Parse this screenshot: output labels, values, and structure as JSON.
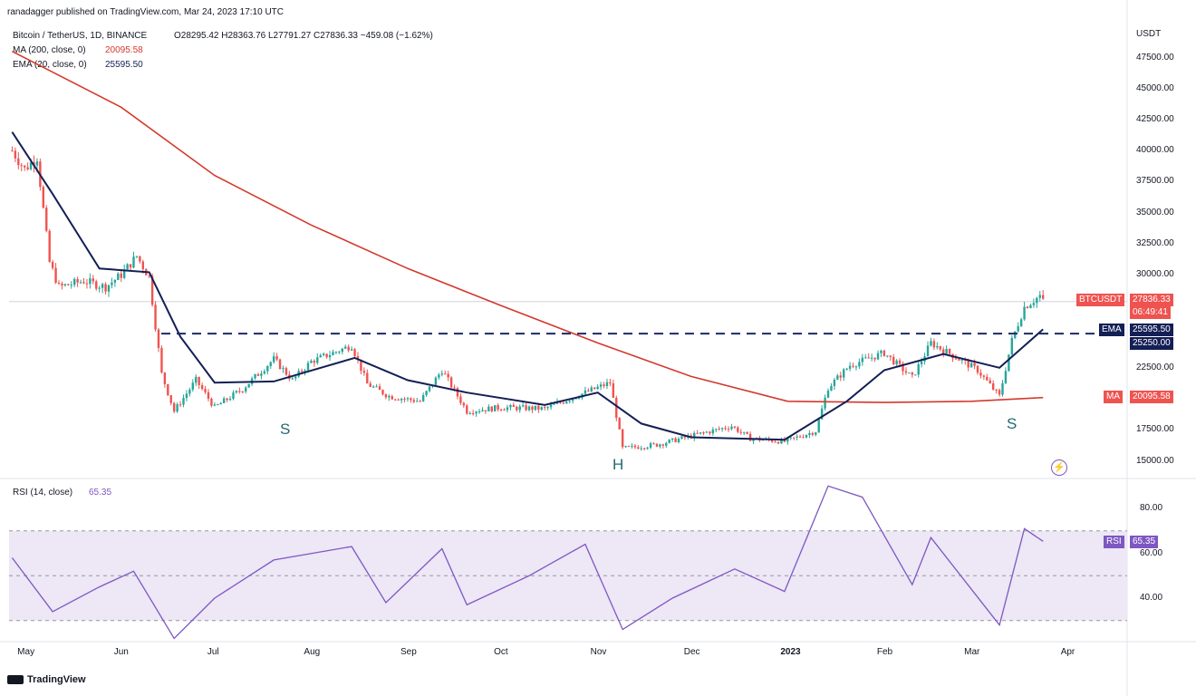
{
  "header": {
    "published": "ranadagger published on TradingView.com, Mar 24, 2023 17:10 UTC",
    "symbol": "Bitcoin / TetherUS, 1D, BINANCE",
    "ohlc": "O28295.42 H28363.76 L27791.27 C27836.33 −459.08 (−1.62%)",
    "ma_legend": "MA (200, close, 0)",
    "ma_value": "20095.58",
    "ema_legend": "EMA (20, close, 0)",
    "ema_value": "25595.50"
  },
  "rsi_panel": {
    "legend": "RSI (14, close)",
    "value": "65.35",
    "ticks": [
      "80.00",
      "60.00",
      "40.00"
    ]
  },
  "price_axis": {
    "unit": "USDT",
    "ticks": [
      "47500.00",
      "45000.00",
      "42500.00",
      "40000.00",
      "37500.00",
      "35000.00",
      "32500.00",
      "30000.00",
      "22500.00",
      "17500.00",
      "15000.00"
    ]
  },
  "badges": {
    "symbol_name": "BTCUSDT",
    "last_price": "27836.33",
    "countdown": "06:49:41",
    "ema_name": "EMA",
    "ema_value": "25595.50",
    "level_value": "25250.00",
    "ma_name": "MA",
    "ma_value": "20095.58",
    "rsi_name": "RSI",
    "rsi_value": "65.35"
  },
  "annotations": {
    "left_shoulder": "S",
    "head": "H",
    "right_shoulder": "S"
  },
  "time_axis": [
    "May",
    "Jun",
    "Jul",
    "Aug",
    "Sep",
    "Oct",
    "Nov",
    "Dec",
    "2023",
    "Feb",
    "Mar",
    "Apr"
  ],
  "footer": {
    "logo": "TradingView"
  },
  "colors": {
    "candle_up": "#26a69a",
    "candle_down": "#ef5350",
    "ema": "#131f55",
    "ma": "#d5382b",
    "rsi": "#7e57c2",
    "rsi_band": "#ede7f6",
    "level_line": "#1b2a6b",
    "badge_symbol": "#ef5350",
    "badge_ema": "#131f55",
    "badge_ma": "#ef5350",
    "badge_rsi": "#7e57c2"
  },
  "chart_data": {
    "type": "candlestick",
    "symbol": "BTCUSDT",
    "timeframe": "1D",
    "price_range": [
      14000,
      48500
    ],
    "horizontal_level": 25250,
    "price_close_approx": [
      [
        "2022-04-27",
        40000
      ],
      [
        "2022-05-01",
        38500
      ],
      [
        "2022-05-05",
        39500
      ],
      [
        "2022-05-09",
        31000
      ],
      [
        "2022-05-12",
        29000
      ],
      [
        "2022-05-20",
        29500
      ],
      [
        "2022-05-27",
        29000
      ],
      [
        "2022-06-01",
        30000
      ],
      [
        "2022-06-06",
        31500
      ],
      [
        "2022-06-10",
        29800
      ],
      [
        "2022-06-14",
        22000
      ],
      [
        "2022-06-18",
        19000
      ],
      [
        "2022-06-25",
        21500
      ],
      [
        "2022-07-01",
        19300
      ],
      [
        "2022-07-10",
        20800
      ],
      [
        "2022-07-20",
        23200
      ],
      [
        "2022-07-26",
        21500
      ],
      [
        "2022-08-01",
        23000
      ],
      [
        "2022-08-14",
        24300
      ],
      [
        "2022-08-19",
        21200
      ],
      [
        "2022-08-26",
        20200
      ],
      [
        "2022-09-05",
        19800
      ],
      [
        "2022-09-12",
        22300
      ],
      [
        "2022-09-20",
        19000
      ],
      [
        "2022-10-01",
        19300
      ],
      [
        "2022-10-15",
        19200
      ],
      [
        "2022-10-25",
        20200
      ],
      [
        "2022-11-05",
        21300
      ],
      [
        "2022-11-09",
        16000
      ],
      [
        "2022-11-20",
        16300
      ],
      [
        "2022-12-01",
        17000
      ],
      [
        "2022-12-14",
        17800
      ],
      [
        "2022-12-20",
        16800
      ],
      [
        "2022-12-31",
        16550
      ],
      [
        "2023-01-10",
        17400
      ],
      [
        "2023-01-14",
        20900
      ],
      [
        "2023-01-21",
        22700
      ],
      [
        "2023-02-01",
        23700
      ],
      [
        "2023-02-10",
        21700
      ],
      [
        "2023-02-16",
        24500
      ],
      [
        "2023-02-25",
        23200
      ],
      [
        "2023-03-03",
        22300
      ],
      [
        "2023-03-10",
        20200
      ],
      [
        "2023-03-14",
        24700
      ],
      [
        "2023-03-18",
        27400
      ],
      [
        "2023-03-23",
        28300
      ],
      [
        "2023-03-24",
        27836.33
      ]
    ],
    "ema20_approx": [
      [
        "2022-04-27",
        41500
      ],
      [
        "2022-05-10",
        36500
      ],
      [
        "2022-05-25",
        30500
      ],
      [
        "2022-06-10",
        30200
      ],
      [
        "2022-06-20",
        25000
      ],
      [
        "2022-07-01",
        21300
      ],
      [
        "2022-07-20",
        21400
      ],
      [
        "2022-08-15",
        23300
      ],
      [
        "2022-09-01",
        21500
      ],
      [
        "2022-09-20",
        20500
      ],
      [
        "2022-10-15",
        19500
      ],
      [
        "2022-11-01",
        20500
      ],
      [
        "2022-11-15",
        18000
      ],
      [
        "2022-12-01",
        16900
      ],
      [
        "2022-12-31",
        16700
      ],
      [
        "2023-01-20",
        19800
      ],
      [
        "2023-02-01",
        22300
      ],
      [
        "2023-02-20",
        23600
      ],
      [
        "2023-03-10",
        22500
      ],
      [
        "2023-03-24",
        25595.5
      ]
    ],
    "ma200_approx": [
      [
        "2022-04-27",
        48000
      ],
      [
        "2022-06-01",
        43500
      ],
      [
        "2022-07-01",
        38000
      ],
      [
        "2022-08-01",
        34000
      ],
      [
        "2022-09-01",
        30500
      ],
      [
        "2022-10-01",
        27500
      ],
      [
        "2022-11-01",
        24500
      ],
      [
        "2022-12-01",
        21800
      ],
      [
        "2023-01-01",
        19800
      ],
      [
        "2023-02-01",
        19700
      ],
      [
        "2023-03-01",
        19800
      ],
      [
        "2023-03-24",
        20095.58
      ]
    ],
    "rsi_range": [
      20,
      95
    ],
    "rsi_band": [
      30,
      70
    ],
    "rsi14_approx": [
      [
        "2022-04-27",
        58
      ],
      [
        "2022-05-10",
        34
      ],
      [
        "2022-05-25",
        45
      ],
      [
        "2022-06-05",
        52
      ],
      [
        "2022-06-18",
        22
      ],
      [
        "2022-07-01",
        40
      ],
      [
        "2022-07-20",
        57
      ],
      [
        "2022-08-14",
        63
      ],
      [
        "2022-08-25",
        38
      ],
      [
        "2022-09-12",
        62
      ],
      [
        "2022-09-20",
        37
      ],
      [
        "2022-10-10",
        50
      ],
      [
        "2022-10-28",
        64
      ],
      [
        "2022-11-09",
        26
      ],
      [
        "2022-11-25",
        40
      ],
      [
        "2022-12-15",
        53
      ],
      [
        "2022-12-31",
        43
      ],
      [
        "2023-01-14",
        90
      ],
      [
        "2023-01-25",
        85
      ],
      [
        "2023-02-10",
        46
      ],
      [
        "2023-02-16",
        67
      ],
      [
        "2023-03-10",
        28
      ],
      [
        "2023-03-18",
        71
      ],
      [
        "2023-03-24",
        65.35
      ]
    ]
  }
}
